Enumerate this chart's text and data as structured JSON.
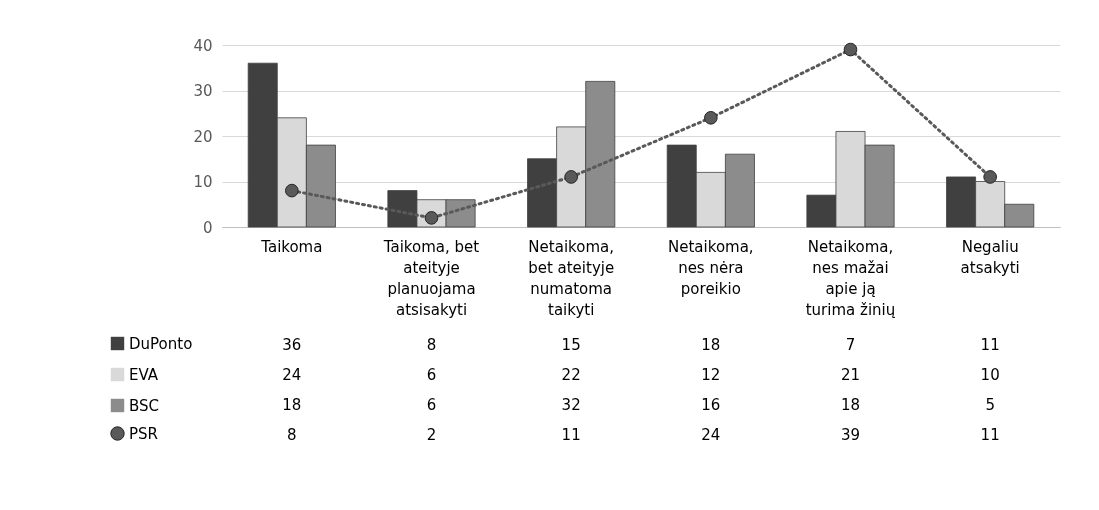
{
  "chart_data": {
    "type": "bar",
    "categories": [
      "Taikoma",
      "Taikoma, bet ateityje planuojama atsisakyti",
      "Netaikoma, bet ateityje numatoma taikyti",
      "Netaikoma, nes nėra poreikio",
      "Netaikoma, nes mažai apie ją turima žinių",
      "Negaliu atsakyti"
    ],
    "series": [
      {
        "name": "DuPonto",
        "color": "#404040",
        "values": [
          36,
          8,
          15,
          18,
          7,
          11
        ]
      },
      {
        "name": "EVA",
        "color": "#d9d9d9",
        "values": [
          24,
          6,
          22,
          12,
          21,
          10
        ]
      },
      {
        "name": "BSC",
        "color": "#8c8c8c",
        "values": [
          18,
          6,
          32,
          16,
          18,
          5
        ]
      },
      {
        "name": "PSR",
        "type": "line",
        "color": "#595959",
        "values": [
          8,
          2,
          11,
          24,
          39,
          11
        ]
      }
    ],
    "ylim": [
      0,
      40
    ],
    "yticks": [
      0,
      10,
      20,
      30,
      40
    ],
    "grid": "y",
    "legend": "bottom left",
    "data_labels": true,
    "marker": "circle",
    "line_style": "dotted"
  }
}
